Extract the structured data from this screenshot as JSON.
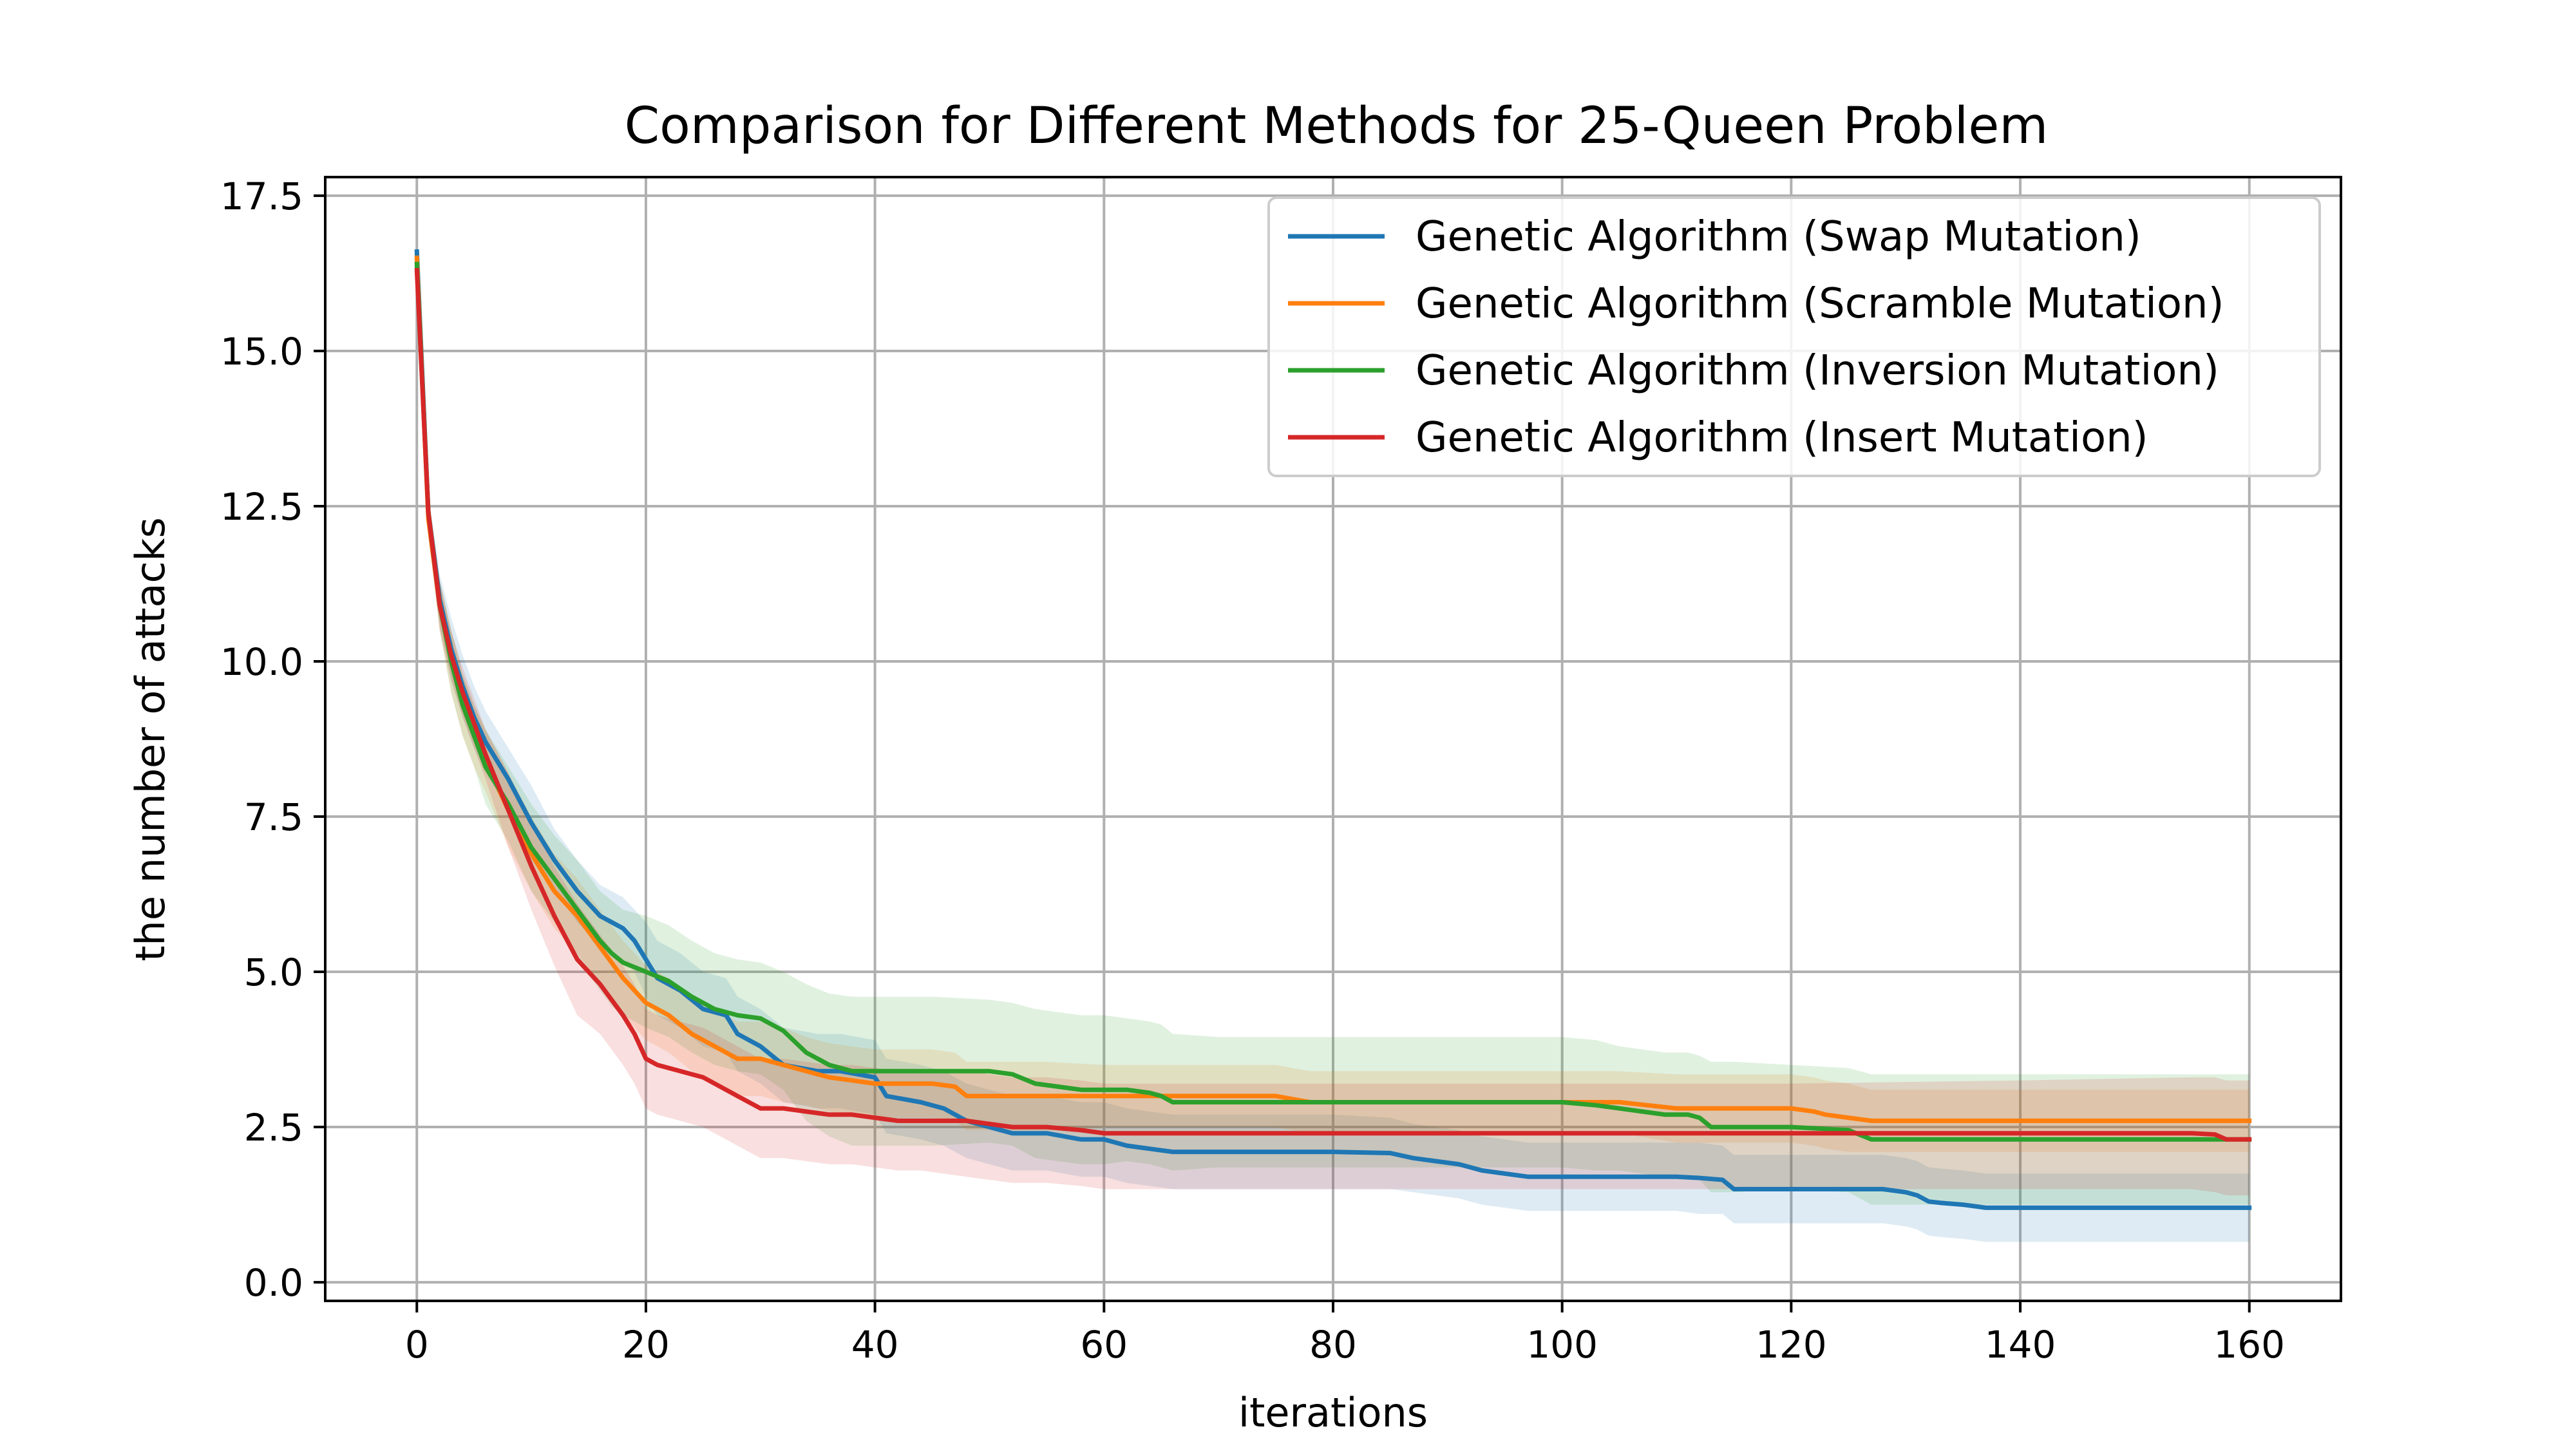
{
  "chart_data": {
    "type": "line",
    "title": "Comparison for Different Methods for 25-Queen Problem",
    "xlabel": "iterations",
    "ylabel": "the number of attacks",
    "xlim": [
      -8,
      168
    ],
    "ylim": [
      -0.3,
      17.8
    ],
    "xticks": [
      0,
      20,
      40,
      60,
      80,
      100,
      120,
      140,
      160
    ],
    "yticks": [
      0.0,
      2.5,
      5.0,
      7.5,
      10.0,
      12.5,
      15.0,
      17.5
    ],
    "xtick_labels": [
      "0",
      "20",
      "40",
      "60",
      "80",
      "100",
      "120",
      "140",
      "160"
    ],
    "ytick_labels": [
      "0.0",
      "2.5",
      "5.0",
      "7.5",
      "10.0",
      "12.5",
      "15.0",
      "17.5"
    ],
    "grid": true,
    "legend_position": "upper-right",
    "series": [
      {
        "name": "Genetic Algorithm (Swap Mutation)",
        "color": "#1f77b4",
        "x": [
          0,
          1,
          2,
          3,
          4,
          5,
          6,
          8,
          10,
          12,
          14,
          16,
          18,
          19,
          20,
          21,
          23,
          25,
          27,
          28,
          30,
          32,
          35,
          37,
          40,
          41,
          44,
          46,
          48,
          50,
          52,
          55,
          58,
          60,
          62,
          64,
          66,
          70,
          75,
          80,
          85,
          87,
          89,
          91,
          93,
          95,
          97,
          100,
          105,
          110,
          112,
          114,
          115,
          120,
          125,
          128,
          130,
          131,
          132,
          133,
          135,
          137,
          138,
          140,
          160
        ],
        "y": [
          16.6,
          12.4,
          11.0,
          10.2,
          9.6,
          9.1,
          8.7,
          8.1,
          7.4,
          6.8,
          6.3,
          5.9,
          5.7,
          5.5,
          5.2,
          4.9,
          4.7,
          4.4,
          4.3,
          4.0,
          3.8,
          3.5,
          3.4,
          3.4,
          3.3,
          3.0,
          2.9,
          2.8,
          2.6,
          2.5,
          2.4,
          2.4,
          2.3,
          2.3,
          2.2,
          2.15,
          2.1,
          2.1,
          2.1,
          2.1,
          2.08,
          2.0,
          1.95,
          1.9,
          1.8,
          1.75,
          1.7,
          1.7,
          1.7,
          1.7,
          1.68,
          1.65,
          1.5,
          1.5,
          1.5,
          1.5,
          1.45,
          1.4,
          1.3,
          1.28,
          1.25,
          1.2,
          1.2,
          1.2,
          1.2
        ],
        "upper": [
          16.6,
          12.7,
          11.4,
          10.7,
          10.1,
          9.6,
          9.2,
          8.6,
          8.0,
          7.3,
          6.8,
          6.4,
          6.2,
          6.0,
          5.8,
          5.5,
          5.3,
          5.0,
          4.9,
          4.6,
          4.4,
          4.1,
          4.0,
          4.0,
          3.9,
          3.6,
          3.5,
          3.4,
          3.2,
          3.1,
          3.0,
          3.0,
          2.9,
          2.9,
          2.8,
          2.75,
          2.7,
          2.7,
          2.7,
          2.7,
          2.65,
          2.55,
          2.5,
          2.45,
          2.35,
          2.3,
          2.25,
          2.25,
          2.25,
          2.25,
          2.25,
          2.2,
          2.05,
          2.05,
          2.05,
          2.05,
          2.0,
          1.95,
          1.85,
          1.83,
          1.8,
          1.75,
          1.75,
          1.75,
          1.75
        ],
        "lower": [
          16.6,
          12.1,
          10.6,
          9.7,
          9.1,
          8.6,
          8.2,
          7.6,
          6.8,
          6.3,
          5.8,
          5.4,
          5.2,
          5.0,
          4.6,
          4.3,
          4.1,
          3.8,
          3.7,
          3.4,
          3.2,
          2.9,
          2.8,
          2.8,
          2.7,
          2.4,
          2.3,
          2.2,
          2.0,
          1.9,
          1.8,
          1.8,
          1.7,
          1.7,
          1.6,
          1.55,
          1.5,
          1.5,
          1.5,
          1.5,
          1.5,
          1.45,
          1.4,
          1.35,
          1.25,
          1.2,
          1.15,
          1.15,
          1.15,
          1.15,
          1.1,
          1.1,
          0.95,
          0.95,
          0.95,
          0.95,
          0.9,
          0.85,
          0.75,
          0.73,
          0.7,
          0.65,
          0.65,
          0.65,
          0.65
        ]
      },
      {
        "name": "Genetic Algorithm (Scramble Mutation)",
        "color": "#ff7f0e",
        "x": [
          0,
          1,
          2,
          3,
          4,
          5,
          6,
          8,
          10,
          12,
          14,
          16,
          18,
          19,
          20,
          22,
          24,
          26,
          28,
          30,
          32,
          34,
          36,
          38,
          40,
          45,
          47,
          48,
          50,
          55,
          60,
          65,
          70,
          75,
          78,
          80,
          100,
          105,
          110,
          115,
          120,
          122,
          123,
          125,
          127,
          130,
          140,
          150,
          160
        ],
        "y": [
          16.5,
          12.3,
          10.9,
          10.0,
          9.3,
          8.8,
          8.4,
          7.6,
          6.9,
          6.3,
          5.9,
          5.4,
          4.9,
          4.7,
          4.5,
          4.3,
          4.0,
          3.8,
          3.6,
          3.6,
          3.5,
          3.4,
          3.3,
          3.25,
          3.2,
          3.2,
          3.15,
          3.0,
          3.0,
          3.0,
          3.0,
          3.0,
          3.0,
          3.0,
          2.9,
          2.9,
          2.9,
          2.9,
          2.8,
          2.8,
          2.8,
          2.75,
          2.7,
          2.65,
          2.6,
          2.6,
          2.6,
          2.6,
          2.6
        ],
        "upper": [
          16.5,
          12.6,
          11.3,
          10.5,
          9.8,
          9.3,
          8.9,
          8.2,
          7.5,
          6.9,
          6.5,
          6.0,
          5.5,
          5.3,
          5.1,
          4.9,
          4.6,
          4.4,
          4.2,
          4.2,
          4.1,
          3.95,
          3.85,
          3.8,
          3.75,
          3.75,
          3.7,
          3.55,
          3.55,
          3.55,
          3.5,
          3.5,
          3.5,
          3.5,
          3.4,
          3.4,
          3.4,
          3.4,
          3.35,
          3.35,
          3.35,
          3.3,
          3.25,
          3.2,
          3.1,
          3.1,
          3.1,
          3.1,
          3.1
        ],
        "lower": [
          16.5,
          12.0,
          10.5,
          9.5,
          8.8,
          8.3,
          7.9,
          7.0,
          6.3,
          5.7,
          5.3,
          4.8,
          4.3,
          4.1,
          3.9,
          3.7,
          3.4,
          3.2,
          3.0,
          3.0,
          2.9,
          2.85,
          2.75,
          2.7,
          2.65,
          2.65,
          2.6,
          2.45,
          2.45,
          2.45,
          2.5,
          2.5,
          2.5,
          2.5,
          2.4,
          2.4,
          2.4,
          2.4,
          2.25,
          2.25,
          2.25,
          2.2,
          2.15,
          2.1,
          2.1,
          2.1,
          2.1,
          2.1,
          2.1
        ]
      },
      {
        "name": "Genetic Algorithm (Inversion Mutation)",
        "color": "#2ca02c",
        "x": [
          0,
          1,
          2,
          3,
          4,
          5,
          6,
          8,
          10,
          12,
          14,
          16,
          17,
          18,
          20,
          22,
          24,
          26,
          28,
          30,
          32,
          34,
          36,
          38,
          40,
          45,
          50,
          52,
          54,
          56,
          58,
          60,
          62,
          64,
          65,
          66,
          70,
          80,
          90,
          100,
          103,
          105,
          107,
          109,
          111,
          112,
          113,
          115,
          120,
          125,
          127,
          130,
          140,
          150,
          160
        ],
        "y": [
          16.4,
          12.4,
          10.9,
          10.0,
          9.3,
          8.8,
          8.3,
          7.7,
          7.0,
          6.5,
          6.0,
          5.5,
          5.3,
          5.15,
          5.0,
          4.85,
          4.6,
          4.4,
          4.3,
          4.25,
          4.05,
          3.7,
          3.5,
          3.4,
          3.4,
          3.4,
          3.4,
          3.35,
          3.2,
          3.15,
          3.1,
          3.1,
          3.1,
          3.05,
          3.0,
          2.9,
          2.9,
          2.9,
          2.9,
          2.9,
          2.85,
          2.8,
          2.75,
          2.7,
          2.7,
          2.65,
          2.5,
          2.5,
          2.5,
          2.45,
          2.3,
          2.3,
          2.3,
          2.3,
          2.3
        ],
        "upper": [
          16.4,
          12.7,
          11.3,
          10.5,
          9.8,
          9.3,
          8.9,
          8.3,
          7.7,
          7.2,
          6.8,
          6.3,
          6.15,
          6.0,
          5.9,
          5.75,
          5.5,
          5.3,
          5.2,
          5.15,
          5.0,
          4.8,
          4.65,
          4.6,
          4.6,
          4.6,
          4.55,
          4.5,
          4.4,
          4.35,
          4.3,
          4.3,
          4.25,
          4.2,
          4.15,
          4.0,
          3.95,
          3.95,
          3.95,
          3.95,
          3.9,
          3.8,
          3.75,
          3.7,
          3.7,
          3.65,
          3.55,
          3.55,
          3.5,
          3.45,
          3.35,
          3.35,
          3.35,
          3.35,
          3.35
        ],
        "lower": [
          16.4,
          12.1,
          10.5,
          9.5,
          8.8,
          8.3,
          7.7,
          7.1,
          6.3,
          5.8,
          5.2,
          4.7,
          4.45,
          4.3,
          4.1,
          3.95,
          3.7,
          3.5,
          3.4,
          3.35,
          3.1,
          2.6,
          2.35,
          2.2,
          2.2,
          2.2,
          2.25,
          2.2,
          2.0,
          1.95,
          1.9,
          1.9,
          1.95,
          1.9,
          1.85,
          1.8,
          1.85,
          1.85,
          1.85,
          1.85,
          1.8,
          1.8,
          1.75,
          1.7,
          1.7,
          1.65,
          1.45,
          1.45,
          1.5,
          1.45,
          1.25,
          1.25,
          1.25,
          1.25,
          1.25
        ]
      },
      {
        "name": "Genetic Algorithm (Insert Mutation)",
        "color": "#d62728",
        "x": [
          0,
          1,
          2,
          3,
          4,
          5,
          6,
          8,
          10,
          12,
          14,
          16,
          18,
          19,
          20,
          21,
          23,
          25,
          27,
          28,
          30,
          32,
          34,
          36,
          38,
          40,
          42,
          44,
          46,
          48,
          50,
          52,
          55,
          58,
          60,
          62,
          65,
          70,
          80,
          100,
          120,
          140,
          155,
          157,
          158,
          160
        ],
        "y": [
          16.3,
          12.4,
          10.9,
          10.1,
          9.5,
          9.0,
          8.5,
          7.6,
          6.7,
          5.9,
          5.2,
          4.8,
          4.3,
          4.0,
          3.6,
          3.5,
          3.4,
          3.3,
          3.1,
          3.0,
          2.8,
          2.8,
          2.75,
          2.7,
          2.7,
          2.65,
          2.6,
          2.6,
          2.6,
          2.6,
          2.55,
          2.5,
          2.5,
          2.45,
          2.4,
          2.4,
          2.4,
          2.4,
          2.4,
          2.4,
          2.4,
          2.4,
          2.4,
          2.38,
          2.3,
          2.3
        ],
        "upper": [
          16.3,
          12.7,
          11.3,
          10.5,
          9.9,
          9.4,
          8.9,
          8.2,
          7.4,
          6.7,
          6.1,
          5.6,
          5.1,
          4.8,
          4.4,
          4.3,
          4.2,
          4.1,
          3.9,
          3.8,
          3.6,
          3.6,
          3.55,
          3.5,
          3.5,
          3.45,
          3.4,
          3.4,
          3.4,
          3.4,
          3.35,
          3.3,
          3.3,
          3.25,
          3.2,
          3.2,
          3.2,
          3.2,
          3.2,
          3.2,
          3.2,
          3.25,
          3.3,
          3.3,
          3.25,
          3.25
        ],
        "lower": [
          16.3,
          12.1,
          10.5,
          9.7,
          9.1,
          8.6,
          8.1,
          7.0,
          6.0,
          5.1,
          4.3,
          4.0,
          3.5,
          3.2,
          2.8,
          2.7,
          2.6,
          2.5,
          2.3,
          2.2,
          2.0,
          2.0,
          1.95,
          1.9,
          1.9,
          1.85,
          1.8,
          1.8,
          1.75,
          1.7,
          1.65,
          1.6,
          1.6,
          1.55,
          1.5,
          1.5,
          1.5,
          1.5,
          1.5,
          1.5,
          1.5,
          1.5,
          1.5,
          1.45,
          1.4,
          1.4
        ]
      }
    ]
  }
}
